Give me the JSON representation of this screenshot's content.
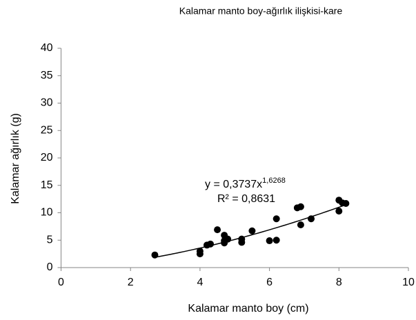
{
  "chart_data": {
    "type": "scatter",
    "title": "Kalamar manto boy-ağırlık ilişkisi-kare",
    "x_label": "Kalamar manto boy (cm)",
    "y_label": "Kalamar ağırlık (g)",
    "color": "#000000",
    "x": [
      2.7,
      4.0,
      4.0,
      4.2,
      4.3,
      4.5,
      4.7,
      4.7,
      4.7,
      4.8,
      5.2,
      5.2,
      5.5,
      6.0,
      6.2,
      6.2,
      6.8,
      6.9,
      6.9,
      7.2,
      8.0,
      8.0,
      8.1,
      8.2
    ],
    "values": [
      2.3,
      2.5,
      3.0,
      4.1,
      4.3,
      6.9,
      5.9,
      4.5,
      4.9,
      5.2,
      5.2,
      4.6,
      6.7,
      4.9,
      5.0,
      8.9,
      10.9,
      11.1,
      7.8,
      8.9,
      12.3,
      10.3,
      11.8,
      11.7
    ],
    "trendline": {
      "type": "power",
      "coefficient": 0.3737,
      "exponent": 1.6268,
      "xlim": [
        2.7,
        8.2
      ]
    },
    "annotations": [
      {
        "text": "y = 0,3737x",
        "superscript": "1,6268"
      },
      {
        "text": "R² = 0,8631"
      }
    ],
    "xlim": [
      0,
      10
    ],
    "xticks": [
      0,
      2,
      4,
      6,
      8,
      10
    ],
    "ylim": [
      0,
      40
    ],
    "yticks": [
      0,
      5,
      10,
      15,
      20,
      25,
      30,
      35,
      40
    ],
    "grid": false
  }
}
